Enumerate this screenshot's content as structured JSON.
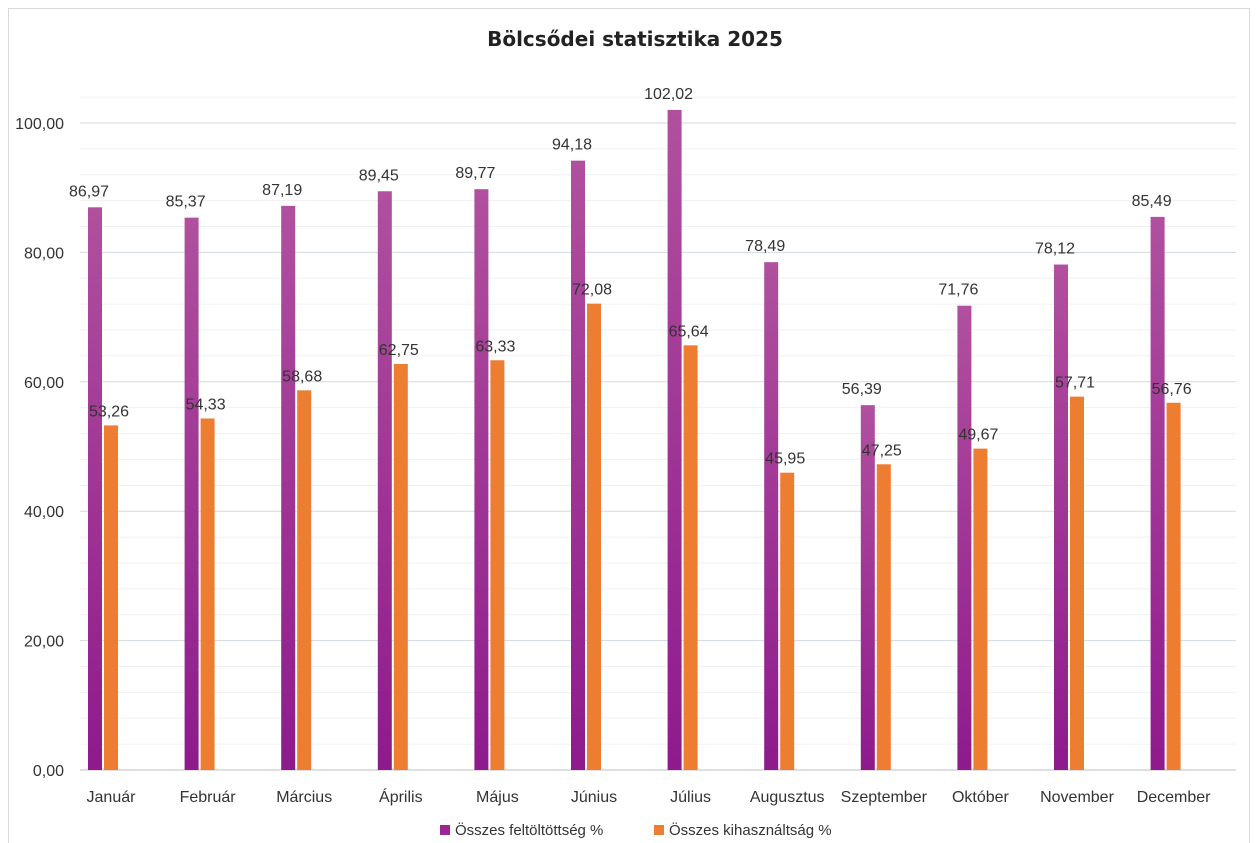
{
  "chart_data": {
    "type": "bar",
    "title": "Bölcsődei statisztika 2025",
    "xlabel": "",
    "ylabel": "",
    "ylim": [
      0,
      110
    ],
    "yticks": [
      "0,00",
      "20,00",
      "40,00",
      "60,00",
      "80,00",
      "100,00"
    ],
    "ytick_values": [
      0,
      20,
      40,
      60,
      80,
      100
    ],
    "grid": true,
    "legend_position": "bottom",
    "categories": [
      "Január",
      "Február",
      "Március",
      "Április",
      "Május",
      "Június",
      "Július",
      "Augusztus",
      "Szeptember",
      "Október",
      "November",
      "December"
    ],
    "series": [
      {
        "name": "Összes feltöltöttség %",
        "color_top": "#b0509e",
        "color_bottom": "#8e1a8c",
        "legend_color": "#9c2794",
        "values": [
          86.97,
          85.37,
          87.19,
          89.45,
          89.77,
          94.18,
          102.02,
          78.49,
          56.39,
          71.76,
          78.12,
          85.49
        ],
        "labels": [
          "86,97",
          "85,37",
          "87,19",
          "89,45",
          "89,77",
          "94,18",
          "102,02",
          "78,49",
          "56,39",
          "71,76",
          "78,12",
          "85,49"
        ]
      },
      {
        "name": "Összes kihasználtság %",
        "color_top": "#ed7d31",
        "color_bottom": "#ed7d31",
        "legend_color": "#ed7d31",
        "values": [
          53.26,
          54.33,
          58.68,
          62.75,
          63.33,
          72.08,
          65.64,
          45.95,
          47.25,
          49.67,
          57.71,
          56.76
        ],
        "labels": [
          "53,26",
          "54,33",
          "58,68",
          "62,75",
          "63,33",
          "72,08",
          "65,64",
          "45,95",
          "47,25",
          "49,67",
          "57,71",
          "56,76"
        ]
      }
    ]
  }
}
